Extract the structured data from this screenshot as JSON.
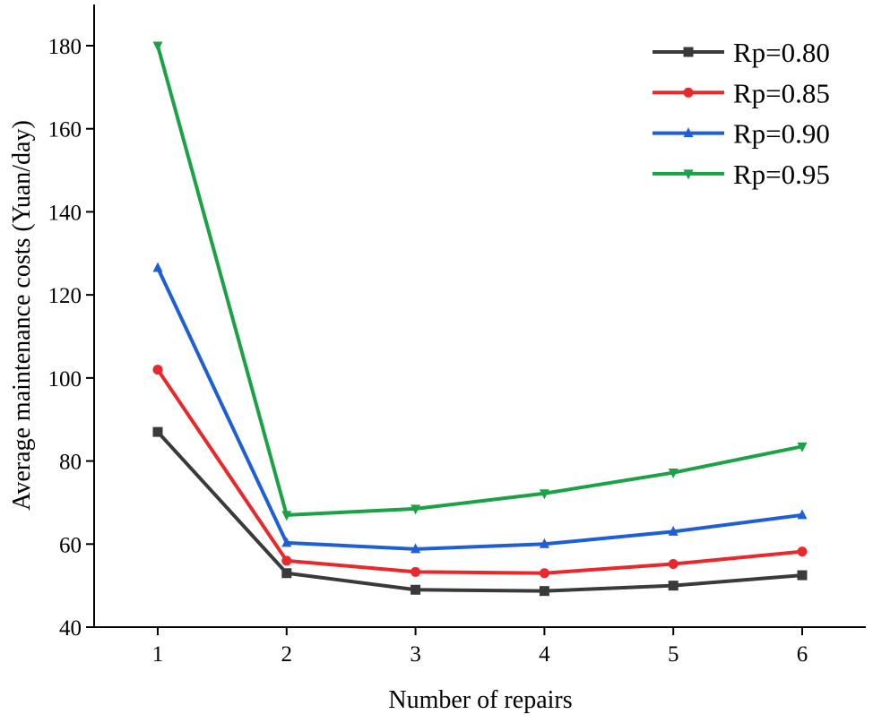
{
  "chart_data": {
    "type": "line",
    "title": "",
    "xlabel": "Number of repairs",
    "ylabel": "Average maintenance costs (Yuan/day)",
    "x": [
      1,
      2,
      3,
      4,
      5,
      6
    ],
    "xlim": [
      0.5,
      6.5
    ],
    "ylim": [
      40,
      190
    ],
    "xticks": [
      1,
      2,
      3,
      4,
      5,
      6
    ],
    "yticks": [
      40,
      60,
      80,
      100,
      120,
      140,
      160,
      180
    ],
    "grid": false,
    "legend_position": "top-right",
    "series": [
      {
        "name": "Rp=0.80",
        "color": "#3a3a3a",
        "marker": "square",
        "values": [
          87.0,
          53.0,
          49.0,
          48.7,
          50.0,
          52.5
        ]
      },
      {
        "name": "Rp=0.85",
        "color": "#e8282b",
        "marker": "circle",
        "values": [
          102.0,
          56.0,
          53.3,
          53.0,
          55.2,
          58.2
        ]
      },
      {
        "name": "Rp=0.90",
        "color": "#1f5fd6",
        "marker": "triangle-up",
        "values": [
          126.5,
          60.3,
          58.8,
          60.0,
          63.0,
          67.0
        ]
      },
      {
        "name": "Rp=0.95",
        "color": "#1aa245",
        "marker": "triangle-down",
        "values": [
          180.0,
          67.0,
          68.5,
          72.2,
          77.2,
          83.5
        ]
      }
    ]
  }
}
